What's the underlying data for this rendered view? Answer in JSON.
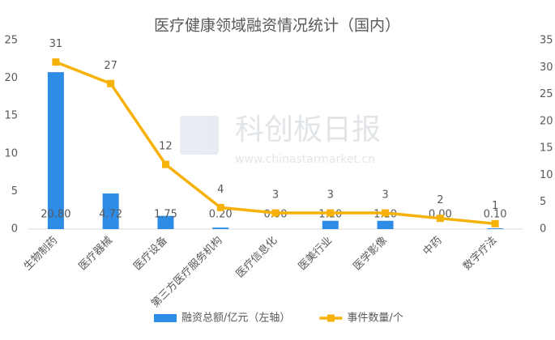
{
  "chart_data": {
    "type": "bar",
    "title": "医疗健康领域融资情况统计（国内）",
    "categories": [
      "生物制药",
      "医疗器械",
      "医疗设备",
      "第三方医疗服务机构",
      "医疗信息化",
      "医美行业",
      "医学影像",
      "中药",
      "数字疗法"
    ],
    "series": [
      {
        "name": "融资总额/亿元（左轴）",
        "type": "bar",
        "color": "#2d8ce6",
        "values": [
          20.8,
          4.72,
          1.75,
          0.2,
          0,
          1.1,
          1.1,
          0,
          0.1
        ],
        "value_labels": [
          "20.80",
          "4.72",
          "1.75",
          "0.20",
          "0.00",
          "1.10",
          "1.10",
          "0.00",
          "0.10"
        ]
      },
      {
        "name": "事件数量/个",
        "type": "line",
        "axis": "y2",
        "color": "#f7b20a",
        "values": [
          31,
          27,
          12,
          4,
          3,
          3,
          3,
          2,
          1
        ]
      }
    ],
    "ylim": [
      0,
      25
    ],
    "yticks": [
      0,
      5,
      10,
      15,
      20,
      25
    ],
    "y2lim": [
      0,
      35
    ],
    "y2ticks": [
      0,
      5,
      10,
      15,
      20,
      25,
      30,
      35
    ],
    "grid": false,
    "legend": "bottom",
    "watermark": {
      "brand": "科创板日报",
      "url": "www.chinastarmarket.cn"
    }
  }
}
